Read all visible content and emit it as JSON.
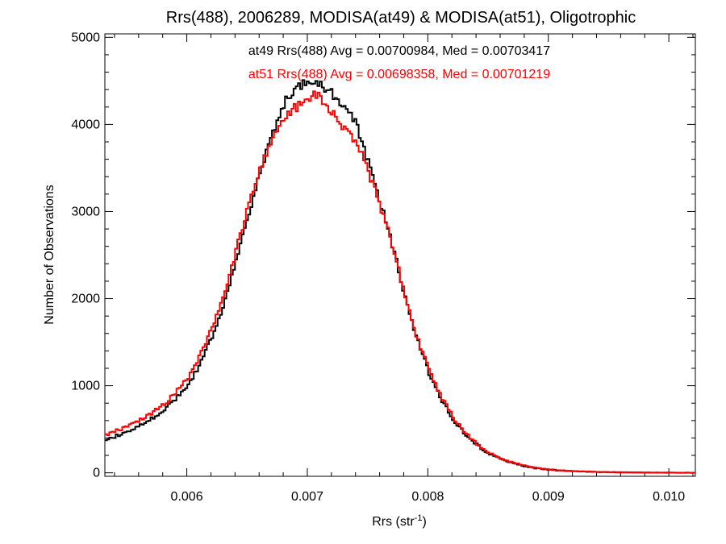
{
  "chart_data": {
    "type": "line",
    "title": "Rrs(488), 2006289, MODISA(at49) & MODISA(at51), Oligotrophic",
    "xlabel": "Rrs (str",
    "xlabel_sup": "-1",
    "xlabel_close": ")",
    "ylabel": "Number of Observations",
    "xlim": [
      0.00532,
      0.01022
    ],
    "ylim": [
      -40,
      5040
    ],
    "x_ticks": [
      0.006,
      0.007,
      0.008,
      0.009,
      0.01
    ],
    "x_tick_labels": [
      "0.006",
      "0.007",
      "0.008",
      "0.009",
      "0.010"
    ],
    "y_ticks": [
      0,
      1000,
      2000,
      3000,
      4000,
      5000
    ],
    "y_tick_labels": [
      "0",
      "1000",
      "2000",
      "3000",
      "4000",
      "5000"
    ],
    "step": true,
    "grid": false,
    "series": [
      {
        "name": "at49",
        "color": "#000000",
        "legend": "at49 Rrs(488) Avg = 0.00700984, Med = 0.00703417",
        "x": [
          0.0053,
          0.0054,
          0.0055,
          0.0056,
          0.0057,
          0.0058,
          0.0059,
          0.006,
          0.0061,
          0.0062,
          0.0063,
          0.0064,
          0.0065,
          0.0066,
          0.0067,
          0.0068,
          0.0069,
          0.007,
          0.00705,
          0.0071,
          0.0072,
          0.0073,
          0.0074,
          0.0075,
          0.0076,
          0.0077,
          0.0078,
          0.0079,
          0.008,
          0.0081,
          0.0082,
          0.0083,
          0.0084,
          0.0085,
          0.0086,
          0.0087,
          0.0088,
          0.0089,
          0.009,
          0.0091,
          0.0092,
          0.0094,
          0.0096,
          0.0098,
          0.01,
          0.0102
        ],
        "y": [
          350,
          420,
          480,
          540,
          620,
          720,
          850,
          1000,
          1250,
          1550,
          1950,
          2450,
          2950,
          3450,
          3900,
          4250,
          4400,
          4500,
          4520,
          4450,
          4350,
          4200,
          4000,
          3550,
          3100,
          2600,
          2050,
          1550,
          1150,
          850,
          620,
          450,
          320,
          220,
          160,
          110,
          75,
          50,
          35,
          25,
          18,
          10,
          5,
          3,
          2,
          1
        ]
      },
      {
        "name": "at51",
        "color": "#ff0000",
        "legend": "at51 Rrs(488) Avg = 0.00698358, Med = 0.00701219",
        "x": [
          0.0053,
          0.0054,
          0.0055,
          0.0056,
          0.0057,
          0.0058,
          0.0059,
          0.006,
          0.0061,
          0.0062,
          0.0063,
          0.0064,
          0.0065,
          0.0066,
          0.0067,
          0.0068,
          0.0069,
          0.007,
          0.00705,
          0.0071,
          0.0072,
          0.0073,
          0.0074,
          0.0075,
          0.0076,
          0.0077,
          0.0078,
          0.0079,
          0.008,
          0.0081,
          0.0082,
          0.0083,
          0.0084,
          0.0085,
          0.0086,
          0.0087,
          0.0088,
          0.0089,
          0.009,
          0.0091,
          0.0092,
          0.0094,
          0.0096,
          0.0098,
          0.01,
          0.0102
        ],
        "y": [
          420,
          480,
          530,
          600,
          680,
          790,
          920,
          1080,
          1350,
          1650,
          2050,
          2550,
          3050,
          3500,
          3850,
          4100,
          4200,
          4250,
          4350,
          4300,
          4150,
          3950,
          3800,
          3450,
          3050,
          2600,
          2050,
          1550,
          1180,
          880,
          640,
          460,
          330,
          230,
          165,
          115,
          80,
          55,
          38,
          27,
          20,
          11,
          6,
          3,
          2,
          1
        ]
      }
    ]
  }
}
